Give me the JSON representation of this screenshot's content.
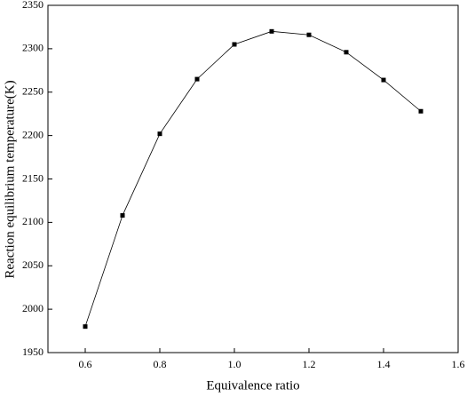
{
  "chart_data": {
    "type": "line",
    "x_label": "Equivalence ratio",
    "y_label": "Reaction equilibrium temperature(K)",
    "x": [
      0.6,
      0.7,
      0.8,
      0.9,
      1.0,
      1.1,
      1.2,
      1.3,
      1.4,
      1.5
    ],
    "values": [
      1980,
      2108,
      2202,
      2265,
      2305,
      2320,
      2316,
      2296,
      2264,
      2228
    ],
    "color": "#000000",
    "xlim": [
      0.5,
      1.6
    ],
    "xticks": [
      0.6,
      0.8,
      {
        "value": 1,
        "label": "1.0"
      },
      1.2,
      1.4,
      1.6
    ],
    "ylim": [
      1950,
      2350
    ],
    "yticks": [
      1950,
      2000,
      2050,
      2100,
      2150,
      2200,
      2250,
      2300,
      2350
    ],
    "grid": false
  }
}
